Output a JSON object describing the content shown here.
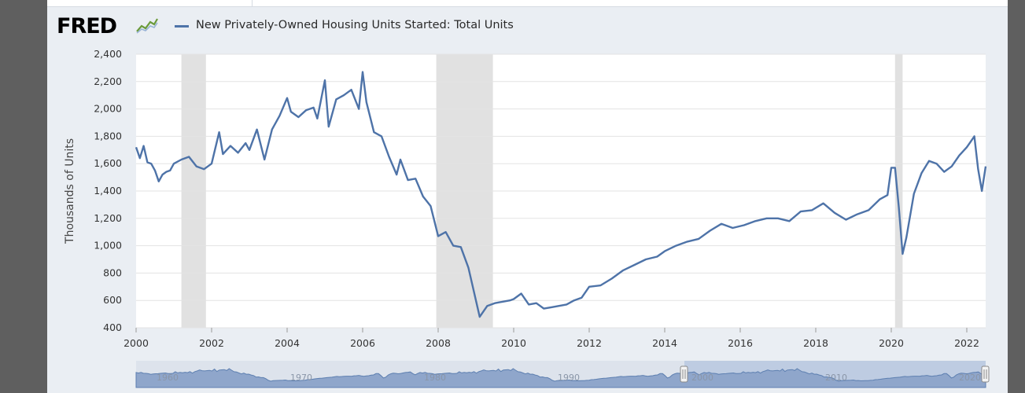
{
  "brand": {
    "logo_text": "FRED",
    "logo_icon": "fred-graph-icon"
  },
  "colors": {
    "series": "#4e73a8",
    "recession": "#e1e1e1",
    "grid": "#e3e3e3",
    "panel_bg": "#eaeef3",
    "navigator_fill": "#8fa6cb"
  },
  "chart_data": {
    "type": "line",
    "title": "",
    "xlabel": "",
    "ylabel": "Thousands of Units",
    "ylim": [
      400,
      2400
    ],
    "xlim": [
      2000.0,
      2022.5
    ],
    "yticks": [
      "2,400",
      "2,200",
      "2,000",
      "1,800",
      "1,600",
      "1,400",
      "1,200",
      "1,000",
      "800",
      "600",
      "400"
    ],
    "xticks": [
      "2000",
      "2002",
      "2004",
      "2006",
      "2008",
      "2010",
      "2012",
      "2014",
      "2016",
      "2018",
      "2020",
      "2022"
    ],
    "grid": true,
    "legend_placement": "top-left",
    "recessions": [
      {
        "start": 2001.2,
        "end": 2001.85
      },
      {
        "start": 2007.95,
        "end": 2009.45
      },
      {
        "start": 2020.1,
        "end": 2020.3
      }
    ],
    "series": [
      {
        "name": "New Privately-Owned Housing Units Started: Total Units",
        "x": [
          2000.0,
          2000.1,
          2000.2,
          2000.3,
          2000.4,
          2000.5,
          2000.6,
          2000.7,
          2000.8,
          2000.9,
          2001.0,
          2001.2,
          2001.4,
          2001.6,
          2001.8,
          2002.0,
          2002.2,
          2002.3,
          2002.5,
          2002.7,
          2002.9,
          2003.0,
          2003.2,
          2003.4,
          2003.6,
          2003.8,
          2004.0,
          2004.1,
          2004.3,
          2004.5,
          2004.7,
          2004.8,
          2005.0,
          2005.1,
          2005.3,
          2005.5,
          2005.7,
          2005.9,
          2006.0,
          2006.1,
          2006.3,
          2006.5,
          2006.7,
          2006.9,
          2007.0,
          2007.2,
          2007.4,
          2007.6,
          2007.8,
          2008.0,
          2008.2,
          2008.4,
          2008.6,
          2008.8,
          2009.0,
          2009.1,
          2009.3,
          2009.5,
          2009.7,
          2009.9,
          2010.0,
          2010.2,
          2010.4,
          2010.6,
          2010.8,
          2011.0,
          2011.2,
          2011.4,
          2011.6,
          2011.8,
          2012.0,
          2012.3,
          2012.6,
          2012.9,
          2013.2,
          2013.5,
          2013.8,
          2014.0,
          2014.3,
          2014.6,
          2014.9,
          2015.2,
          2015.5,
          2015.8,
          2016.1,
          2016.4,
          2016.7,
          2017.0,
          2017.3,
          2017.6,
          2017.9,
          2018.2,
          2018.5,
          2018.8,
          2019.1,
          2019.4,
          2019.7,
          2019.9,
          2020.0,
          2020.1,
          2020.2,
          2020.3,
          2020.4,
          2020.6,
          2020.8,
          2021.0,
          2021.2,
          2021.4,
          2021.6,
          2021.8,
          2022.0,
          2022.1,
          2022.2,
          2022.3,
          2022.4,
          2022.5
        ],
        "values": [
          1720,
          1640,
          1730,
          1610,
          1600,
          1550,
          1470,
          1520,
          1540,
          1550,
          1600,
          1630,
          1650,
          1580,
          1560,
          1600,
          1830,
          1670,
          1730,
          1680,
          1750,
          1700,
          1850,
          1630,
          1850,
          1950,
          2080,
          1980,
          1940,
          1990,
          2010,
          1930,
          2210,
          1870,
          2070,
          2100,
          2140,
          2000,
          2270,
          2050,
          1830,
          1800,
          1650,
          1520,
          1630,
          1480,
          1490,
          1360,
          1290,
          1070,
          1100,
          1000,
          990,
          840,
          600,
          480,
          560,
          580,
          590,
          600,
          610,
          650,
          570,
          580,
          540,
          550,
          560,
          570,
          600,
          620,
          700,
          710,
          760,
          820,
          860,
          900,
          920,
          960,
          1000,
          1030,
          1050,
          1110,
          1160,
          1130,
          1150,
          1180,
          1200,
          1200,
          1180,
          1250,
          1260,
          1310,
          1240,
          1190,
          1230,
          1260,
          1340,
          1370,
          1570,
          1570,
          1280,
          940,
          1060,
          1380,
          1530,
          1620,
          1600,
          1540,
          1580,
          1660,
          1720,
          1760,
          1800,
          1560,
          1400,
          1580
        ]
      }
    ]
  },
  "navigator": {
    "labels": [
      "1960",
      "1970",
      "1980",
      "1990",
      "2000",
      "2010",
      "2020"
    ]
  }
}
